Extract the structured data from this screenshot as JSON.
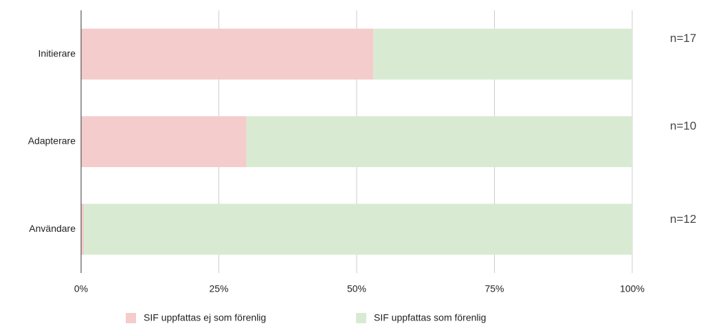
{
  "chart_data": {
    "type": "stacked_barh",
    "categories": [
      "Initierare",
      "Adapterare",
      "Användare"
    ],
    "series": [
      {
        "name": "SIF uppfattas ej som förenlig",
        "color": "#f4cccc",
        "values": [
          53,
          30,
          0.5
        ]
      },
      {
        "name": "SIF uppfattas som förenlig",
        "color": "#d9ead3",
        "values": [
          47,
          70,
          99.5
        ]
      }
    ],
    "xlim": [
      0,
      100
    ],
    "xticks": [
      {
        "value": 0,
        "label": "0%"
      },
      {
        "value": 25,
        "label": "25%"
      },
      {
        "value": 50,
        "label": "50%"
      },
      {
        "value": 75,
        "label": "75%"
      },
      {
        "value": 100,
        "label": "100%"
      }
    ],
    "grid": true,
    "legend": "bottom",
    "annotations": [
      "n=17",
      "n=10",
      "n=12"
    ]
  }
}
